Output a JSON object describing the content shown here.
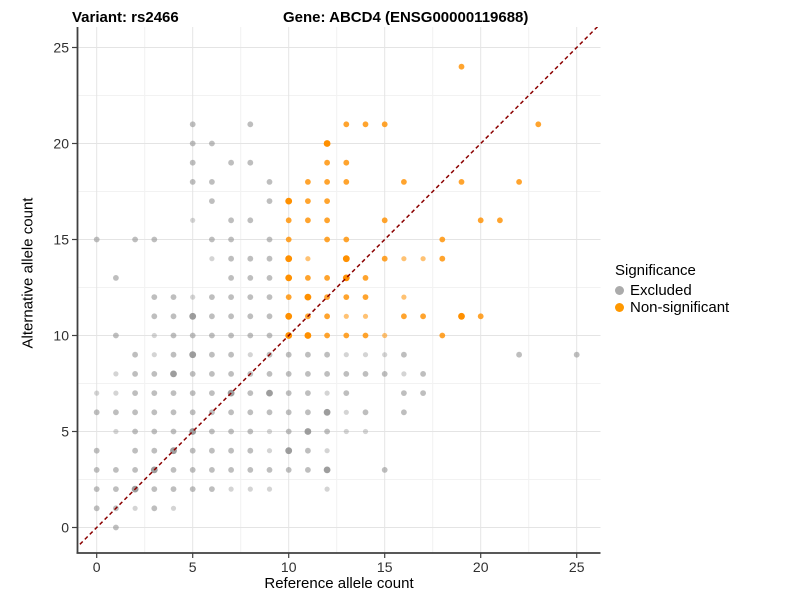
{
  "figure": {
    "title_variant": "Variant: rs2466",
    "title_gene": "Gene: ABCD4 (ENSG00000119688)"
  },
  "axes": {
    "x_label": "Reference allele count",
    "y_label": "Alternative allele count",
    "x_ticks": [
      0,
      5,
      10,
      15,
      20,
      25
    ],
    "y_ticks": [
      0,
      5,
      10,
      15,
      20,
      25
    ]
  },
  "legend": {
    "title": "Significance",
    "items": [
      {
        "label": "Excluded",
        "color": "#ababab"
      },
      {
        "label": "Non-significant",
        "color": "#ff9800"
      }
    ]
  },
  "chart_data": {
    "type": "scatter",
    "title": "Variant: rs2466 | Gene: ABCD4 (ENSG00000119688)",
    "xlabel": "Reference allele count",
    "ylabel": "Alternative allele count",
    "xlim": [
      -1.3,
      26.6
    ],
    "ylim": [
      -1.3,
      26.1
    ],
    "grid": "major+minor",
    "legend_position": "right",
    "identity_line": {
      "equation": "y = x",
      "style": "dashed",
      "color": "#8b0000"
    },
    "shade_note": "third value per point: 0=light, 1=normal, 2=dark (overplotting density)",
    "series": [
      {
        "name": "Excluded",
        "color": "#8f8f8f",
        "points": [
          [
            1,
            0,
            1
          ],
          [
            0,
            1,
            1
          ],
          [
            1,
            1,
            1
          ],
          [
            2,
            1,
            0
          ],
          [
            3,
            1,
            1
          ],
          [
            4,
            1,
            0
          ],
          [
            0,
            2,
            1
          ],
          [
            1,
            2,
            1
          ],
          [
            2,
            2,
            2
          ],
          [
            3,
            2,
            1
          ],
          [
            4,
            2,
            1
          ],
          [
            5,
            2,
            1
          ],
          [
            6,
            2,
            1
          ],
          [
            7,
            2,
            0
          ],
          [
            8,
            2,
            0
          ],
          [
            9,
            2,
            0
          ],
          [
            12,
            2,
            0
          ],
          [
            0,
            3,
            1
          ],
          [
            1,
            3,
            1
          ],
          [
            2,
            3,
            1
          ],
          [
            3,
            3,
            2
          ],
          [
            4,
            3,
            1
          ],
          [
            5,
            3,
            1
          ],
          [
            6,
            3,
            1
          ],
          [
            7,
            3,
            1
          ],
          [
            8,
            3,
            1
          ],
          [
            9,
            3,
            1
          ],
          [
            10,
            3,
            1
          ],
          [
            11,
            3,
            1
          ],
          [
            12,
            3,
            2
          ],
          [
            15,
            3,
            1
          ],
          [
            0,
            4,
            1
          ],
          [
            2,
            4,
            1
          ],
          [
            3,
            4,
            1
          ],
          [
            4,
            4,
            2
          ],
          [
            5,
            4,
            1
          ],
          [
            6,
            4,
            1
          ],
          [
            7,
            4,
            1
          ],
          [
            8,
            4,
            1
          ],
          [
            9,
            4,
            0
          ],
          [
            10,
            4,
            2
          ],
          [
            11,
            4,
            1
          ],
          [
            12,
            4,
            0
          ],
          [
            1,
            5,
            0
          ],
          [
            2,
            5,
            1
          ],
          [
            3,
            5,
            1
          ],
          [
            4,
            5,
            1
          ],
          [
            5,
            5,
            2
          ],
          [
            6,
            5,
            1
          ],
          [
            7,
            5,
            1
          ],
          [
            8,
            5,
            1
          ],
          [
            9,
            5,
            0
          ],
          [
            10,
            5,
            1
          ],
          [
            11,
            5,
            2
          ],
          [
            12,
            5,
            1
          ],
          [
            13,
            5,
            0
          ],
          [
            14,
            5,
            0
          ],
          [
            0,
            6,
            1
          ],
          [
            1,
            6,
            1
          ],
          [
            2,
            6,
            1
          ],
          [
            3,
            6,
            1
          ],
          [
            4,
            6,
            1
          ],
          [
            5,
            6,
            1
          ],
          [
            6,
            6,
            1
          ],
          [
            7,
            6,
            1
          ],
          [
            8,
            6,
            1
          ],
          [
            9,
            6,
            1
          ],
          [
            10,
            6,
            1
          ],
          [
            11,
            6,
            1
          ],
          [
            12,
            6,
            2
          ],
          [
            13,
            6,
            0
          ],
          [
            14,
            6,
            1
          ],
          [
            16,
            6,
            1
          ],
          [
            0,
            7,
            0
          ],
          [
            1,
            7,
            0
          ],
          [
            2,
            7,
            1
          ],
          [
            3,
            7,
            1
          ],
          [
            4,
            7,
            1
          ],
          [
            5,
            7,
            1
          ],
          [
            6,
            7,
            1
          ],
          [
            7,
            7,
            2
          ],
          [
            8,
            7,
            1
          ],
          [
            9,
            7,
            2
          ],
          [
            10,
            7,
            1
          ],
          [
            11,
            7,
            1
          ],
          [
            12,
            7,
            0
          ],
          [
            13,
            7,
            1
          ],
          [
            16,
            7,
            1
          ],
          [
            17,
            7,
            1
          ],
          [
            1,
            8,
            0
          ],
          [
            2,
            8,
            1
          ],
          [
            3,
            8,
            1
          ],
          [
            4,
            8,
            2
          ],
          [
            5,
            8,
            1
          ],
          [
            6,
            8,
            1
          ],
          [
            7,
            8,
            1
          ],
          [
            8,
            8,
            1
          ],
          [
            9,
            8,
            1
          ],
          [
            10,
            8,
            1
          ],
          [
            11,
            8,
            1
          ],
          [
            12,
            8,
            1
          ],
          [
            13,
            8,
            1
          ],
          [
            14,
            8,
            1
          ],
          [
            15,
            8,
            1
          ],
          [
            16,
            8,
            0
          ],
          [
            17,
            8,
            1
          ],
          [
            2,
            9,
            1
          ],
          [
            3,
            9,
            0
          ],
          [
            4,
            9,
            1
          ],
          [
            5,
            9,
            2
          ],
          [
            6,
            9,
            1
          ],
          [
            7,
            9,
            1
          ],
          [
            8,
            9,
            0
          ],
          [
            9,
            9,
            1
          ],
          [
            10,
            9,
            1
          ],
          [
            11,
            9,
            1
          ],
          [
            12,
            9,
            1
          ],
          [
            13,
            9,
            0
          ],
          [
            14,
            9,
            0
          ],
          [
            15,
            9,
            0
          ],
          [
            16,
            9,
            1
          ],
          [
            22,
            9,
            1
          ],
          [
            25,
            9,
            1
          ],
          [
            1,
            10,
            1
          ],
          [
            3,
            10,
            0
          ],
          [
            4,
            10,
            1
          ],
          [
            5,
            10,
            1
          ],
          [
            6,
            10,
            1
          ],
          [
            7,
            10,
            1
          ],
          [
            8,
            10,
            1
          ],
          [
            9,
            10,
            1
          ],
          [
            3,
            11,
            1
          ],
          [
            4,
            11,
            1
          ],
          [
            5,
            11,
            2
          ],
          [
            6,
            11,
            1
          ],
          [
            7,
            11,
            1
          ],
          [
            8,
            11,
            1
          ],
          [
            9,
            11,
            1
          ],
          [
            3,
            12,
            1
          ],
          [
            4,
            12,
            1
          ],
          [
            5,
            12,
            0
          ],
          [
            6,
            12,
            1
          ],
          [
            7,
            12,
            1
          ],
          [
            8,
            12,
            1
          ],
          [
            9,
            12,
            1
          ],
          [
            1,
            13,
            1
          ],
          [
            7,
            13,
            1
          ],
          [
            8,
            13,
            1
          ],
          [
            9,
            13,
            1
          ],
          [
            6,
            14,
            0
          ],
          [
            7,
            14,
            1
          ],
          [
            8,
            14,
            1
          ],
          [
            9,
            14,
            1
          ],
          [
            0,
            15,
            1
          ],
          [
            2,
            15,
            1
          ],
          [
            3,
            15,
            1
          ],
          [
            6,
            15,
            1
          ],
          [
            7,
            15,
            1
          ],
          [
            9,
            15,
            1
          ],
          [
            5,
            16,
            0
          ],
          [
            7,
            16,
            1
          ],
          [
            8,
            16,
            1
          ],
          [
            6,
            17,
            1
          ],
          [
            9,
            17,
            1
          ],
          [
            5,
            18,
            1
          ],
          [
            6,
            18,
            1
          ],
          [
            9,
            18,
            1
          ],
          [
            5,
            19,
            1
          ],
          [
            7,
            19,
            1
          ],
          [
            8,
            19,
            1
          ],
          [
            5,
            20,
            1
          ],
          [
            6,
            20,
            1
          ],
          [
            5,
            21,
            1
          ],
          [
            8,
            21,
            1
          ]
        ]
      },
      {
        "name": "Non-significant",
        "color": "#ff9000",
        "points": [
          [
            10,
            10,
            2
          ],
          [
            11,
            10,
            2
          ],
          [
            12,
            10,
            1
          ],
          [
            13,
            10,
            1
          ],
          [
            14,
            10,
            1
          ],
          [
            15,
            10,
            0
          ],
          [
            18,
            10,
            1
          ],
          [
            10,
            11,
            2
          ],
          [
            11,
            11,
            1
          ],
          [
            12,
            11,
            1
          ],
          [
            13,
            11,
            0
          ],
          [
            14,
            11,
            0
          ],
          [
            16,
            11,
            1
          ],
          [
            17,
            11,
            1
          ],
          [
            19,
            11,
            2
          ],
          [
            20,
            11,
            1
          ],
          [
            10,
            12,
            1
          ],
          [
            11,
            12,
            2
          ],
          [
            12,
            12,
            1
          ],
          [
            13,
            12,
            1
          ],
          [
            14,
            12,
            1
          ],
          [
            16,
            12,
            0
          ],
          [
            10,
            13,
            2
          ],
          [
            11,
            13,
            1
          ],
          [
            12,
            13,
            1
          ],
          [
            13,
            13,
            2
          ],
          [
            14,
            13,
            1
          ],
          [
            10,
            14,
            2
          ],
          [
            11,
            14,
            0
          ],
          [
            13,
            14,
            2
          ],
          [
            15,
            14,
            1
          ],
          [
            16,
            14,
            0
          ],
          [
            17,
            14,
            0
          ],
          [
            18,
            14,
            1
          ],
          [
            10,
            15,
            1
          ],
          [
            12,
            15,
            1
          ],
          [
            13,
            15,
            1
          ],
          [
            18,
            15,
            1
          ],
          [
            10,
            16,
            1
          ],
          [
            11,
            16,
            1
          ],
          [
            12,
            16,
            1
          ],
          [
            15,
            16,
            1
          ],
          [
            20,
            16,
            1
          ],
          [
            21,
            16,
            1
          ],
          [
            10,
            17,
            2
          ],
          [
            11,
            17,
            1
          ],
          [
            12,
            17,
            1
          ],
          [
            11,
            18,
            1
          ],
          [
            12,
            18,
            1
          ],
          [
            13,
            18,
            1
          ],
          [
            16,
            18,
            1
          ],
          [
            19,
            18,
            1
          ],
          [
            22,
            18,
            1
          ],
          [
            12,
            19,
            1
          ],
          [
            13,
            19,
            1
          ],
          [
            12,
            20,
            2
          ],
          [
            13,
            21,
            1
          ],
          [
            14,
            21,
            1
          ],
          [
            15,
            21,
            1
          ],
          [
            23,
            21,
            1
          ],
          [
            19,
            24,
            1
          ]
        ]
      }
    ]
  }
}
